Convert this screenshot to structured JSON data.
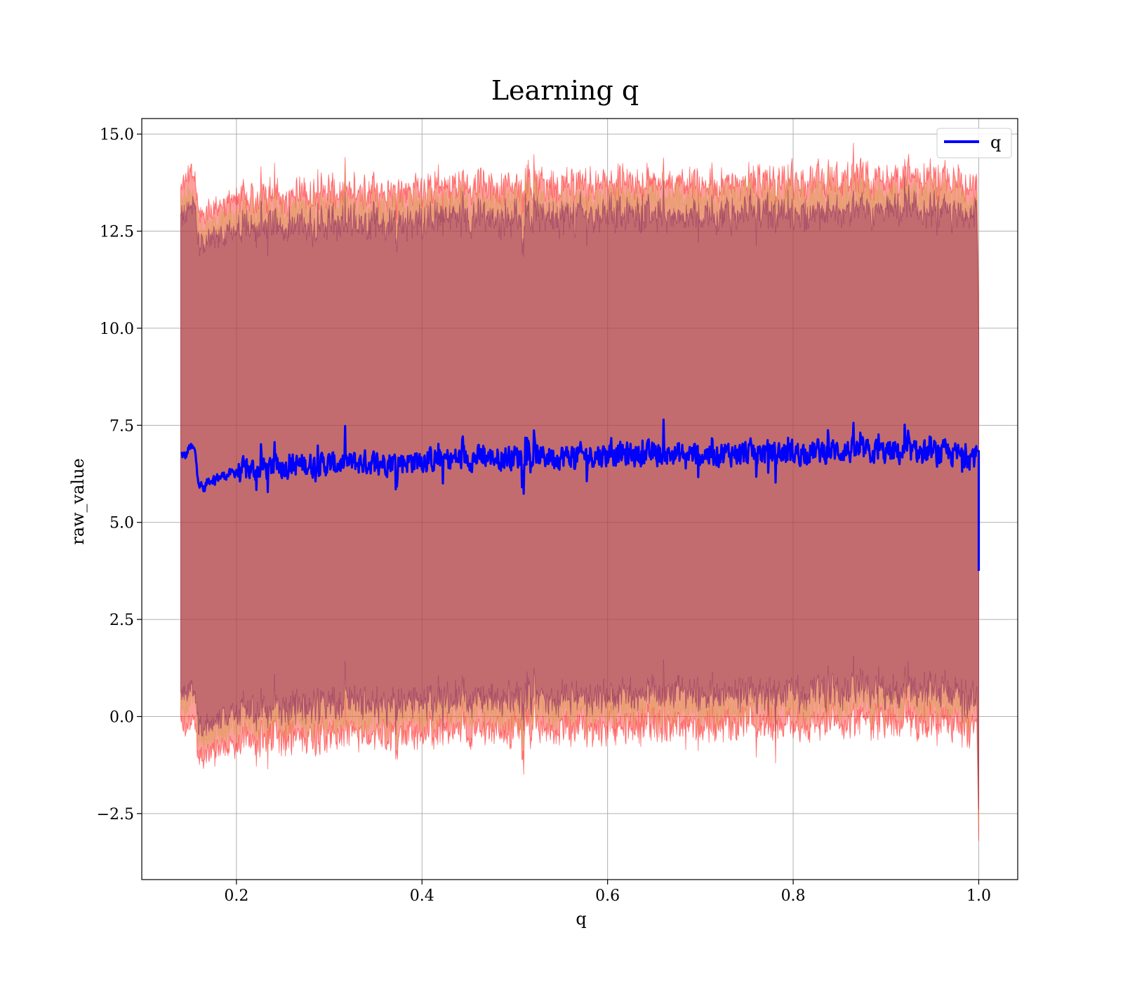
{
  "chart_data": {
    "type": "line",
    "title": "Learning q",
    "xlabel": "q",
    "ylabel": "raw_value",
    "xlim": [
      0.098,
      1.042
    ],
    "ylim": [
      -4.2,
      15.4
    ],
    "x_ticks": [
      0.2,
      0.4,
      0.6,
      0.8,
      1.0
    ],
    "x_tick_labels": [
      "0.2",
      "0.4",
      "0.6",
      "0.8",
      "1.0"
    ],
    "y_ticks": [
      -2.5,
      0.0,
      2.5,
      5.0,
      7.5,
      10.0,
      12.5,
      15.0
    ],
    "y_tick_labels": [
      "−2.5",
      "0.0",
      "2.5",
      "5.0",
      "7.5",
      "10.0",
      "12.5",
      "15.0"
    ],
    "grid": true,
    "legend": {
      "placement": "top-right",
      "entries": [
        "q"
      ]
    },
    "x_range": [
      0.14,
      1.0
    ],
    "series": [
      {
        "name": "q",
        "color": "#0000ff",
        "mean_points": [
          [
            0.14,
            6.75
          ],
          [
            0.145,
            6.7
          ],
          [
            0.15,
            6.95
          ],
          [
            0.155,
            6.85
          ],
          [
            0.16,
            6.0
          ],
          [
            0.165,
            5.85
          ],
          [
            0.17,
            6.1
          ],
          [
            0.18,
            6.15
          ],
          [
            0.2,
            6.3
          ],
          [
            0.25,
            6.45
          ],
          [
            0.3,
            6.5
          ],
          [
            0.35,
            6.55
          ],
          [
            0.4,
            6.6
          ],
          [
            0.45,
            6.65
          ],
          [
            0.5,
            6.7
          ],
          [
            0.55,
            6.7
          ],
          [
            0.6,
            6.75
          ],
          [
            0.65,
            6.75
          ],
          [
            0.7,
            6.75
          ],
          [
            0.75,
            6.8
          ],
          [
            0.8,
            6.8
          ],
          [
            0.85,
            6.85
          ],
          [
            0.9,
            6.8
          ],
          [
            0.95,
            6.8
          ],
          [
            0.998,
            6.7
          ]
        ],
        "end_drop": [
          1.0,
          3.75
        ]
      }
    ],
    "bands": [
      {
        "color": "#ff0000",
        "upper_offset": 7.0,
        "lower_offset": -7.0
      },
      {
        "color": "#d4a04a",
        "upper_offset": 6.6,
        "lower_offset": -6.6
      },
      {
        "color": "#7a1a5a",
        "upper_offset": 6.2,
        "lower_offset": -6.2
      }
    ],
    "band_min_at_end": -3.2
  }
}
